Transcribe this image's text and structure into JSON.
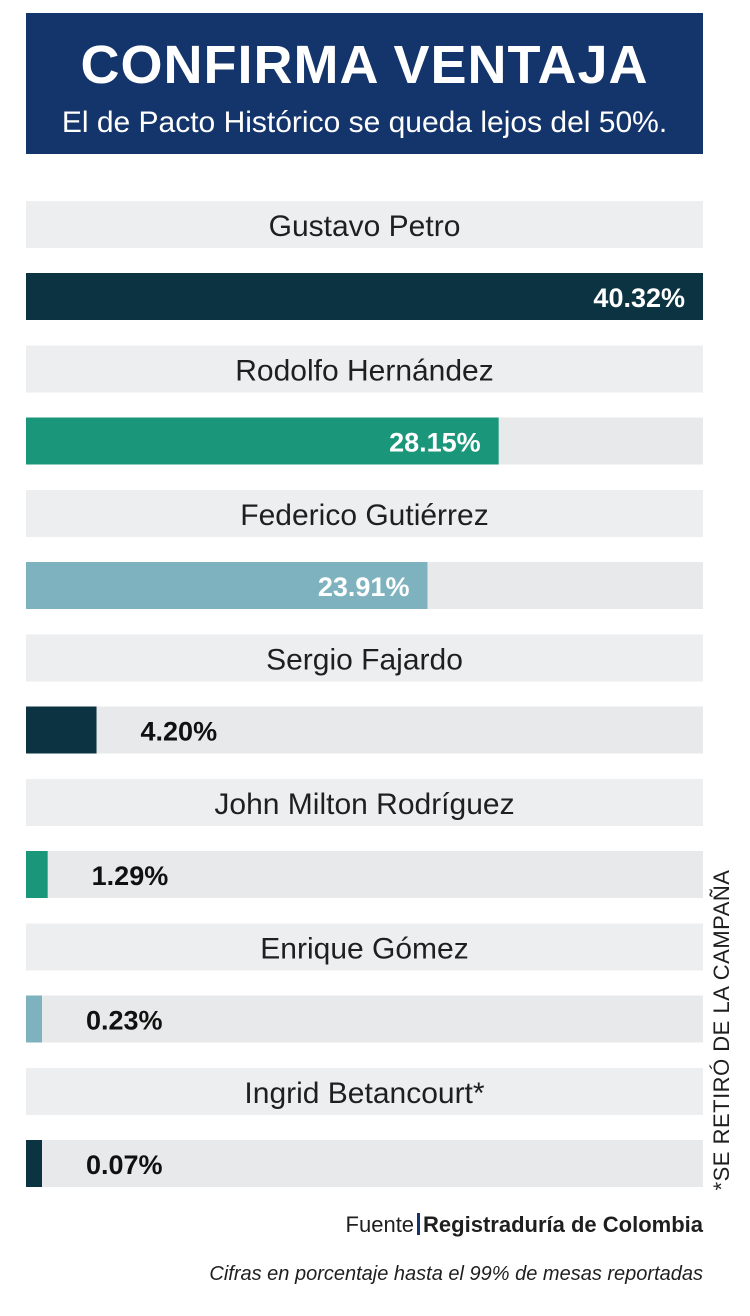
{
  "header": {
    "title": "CONFIRMA VENTAJA",
    "subtitle": "El de Pacto Histórico se queda lejos del 50%."
  },
  "chart_data": {
    "type": "bar",
    "orientation": "horizontal",
    "categories": [
      "Gustavo Petro",
      "Rodolfo Hernández",
      "Federico Gutiérrez",
      "Sergio Fajardo",
      "John Milton Rodríguez",
      "Enrique Gómez",
      "Ingrid Betancourt*"
    ],
    "values": [
      40.32,
      28.15,
      23.91,
      4.2,
      1.29,
      0.23,
      0.07
    ],
    "value_labels": [
      "40.32%",
      "28.15%",
      "23.91%",
      "4.20%",
      "1.29%",
      "0.23%",
      "0.07%"
    ],
    "colors": [
      "#0b3341",
      "#1a967b",
      "#7fb2bf",
      "#0b3341",
      "#1a967b",
      "#7fb2bf",
      "#0b3341"
    ],
    "track_color": "#e8e9ea",
    "label_background": "#eceeef",
    "xlim": [
      0,
      40.32
    ],
    "grid": false,
    "legend": "none"
  },
  "side_note": "*SE RETIRÓ DE LA CAMPAÑA",
  "source": {
    "label": "Fuente",
    "organization": "Registraduría de Colombia"
  },
  "footnote": "Cifras en porcentaje hasta el 99% de mesas reportadas"
}
